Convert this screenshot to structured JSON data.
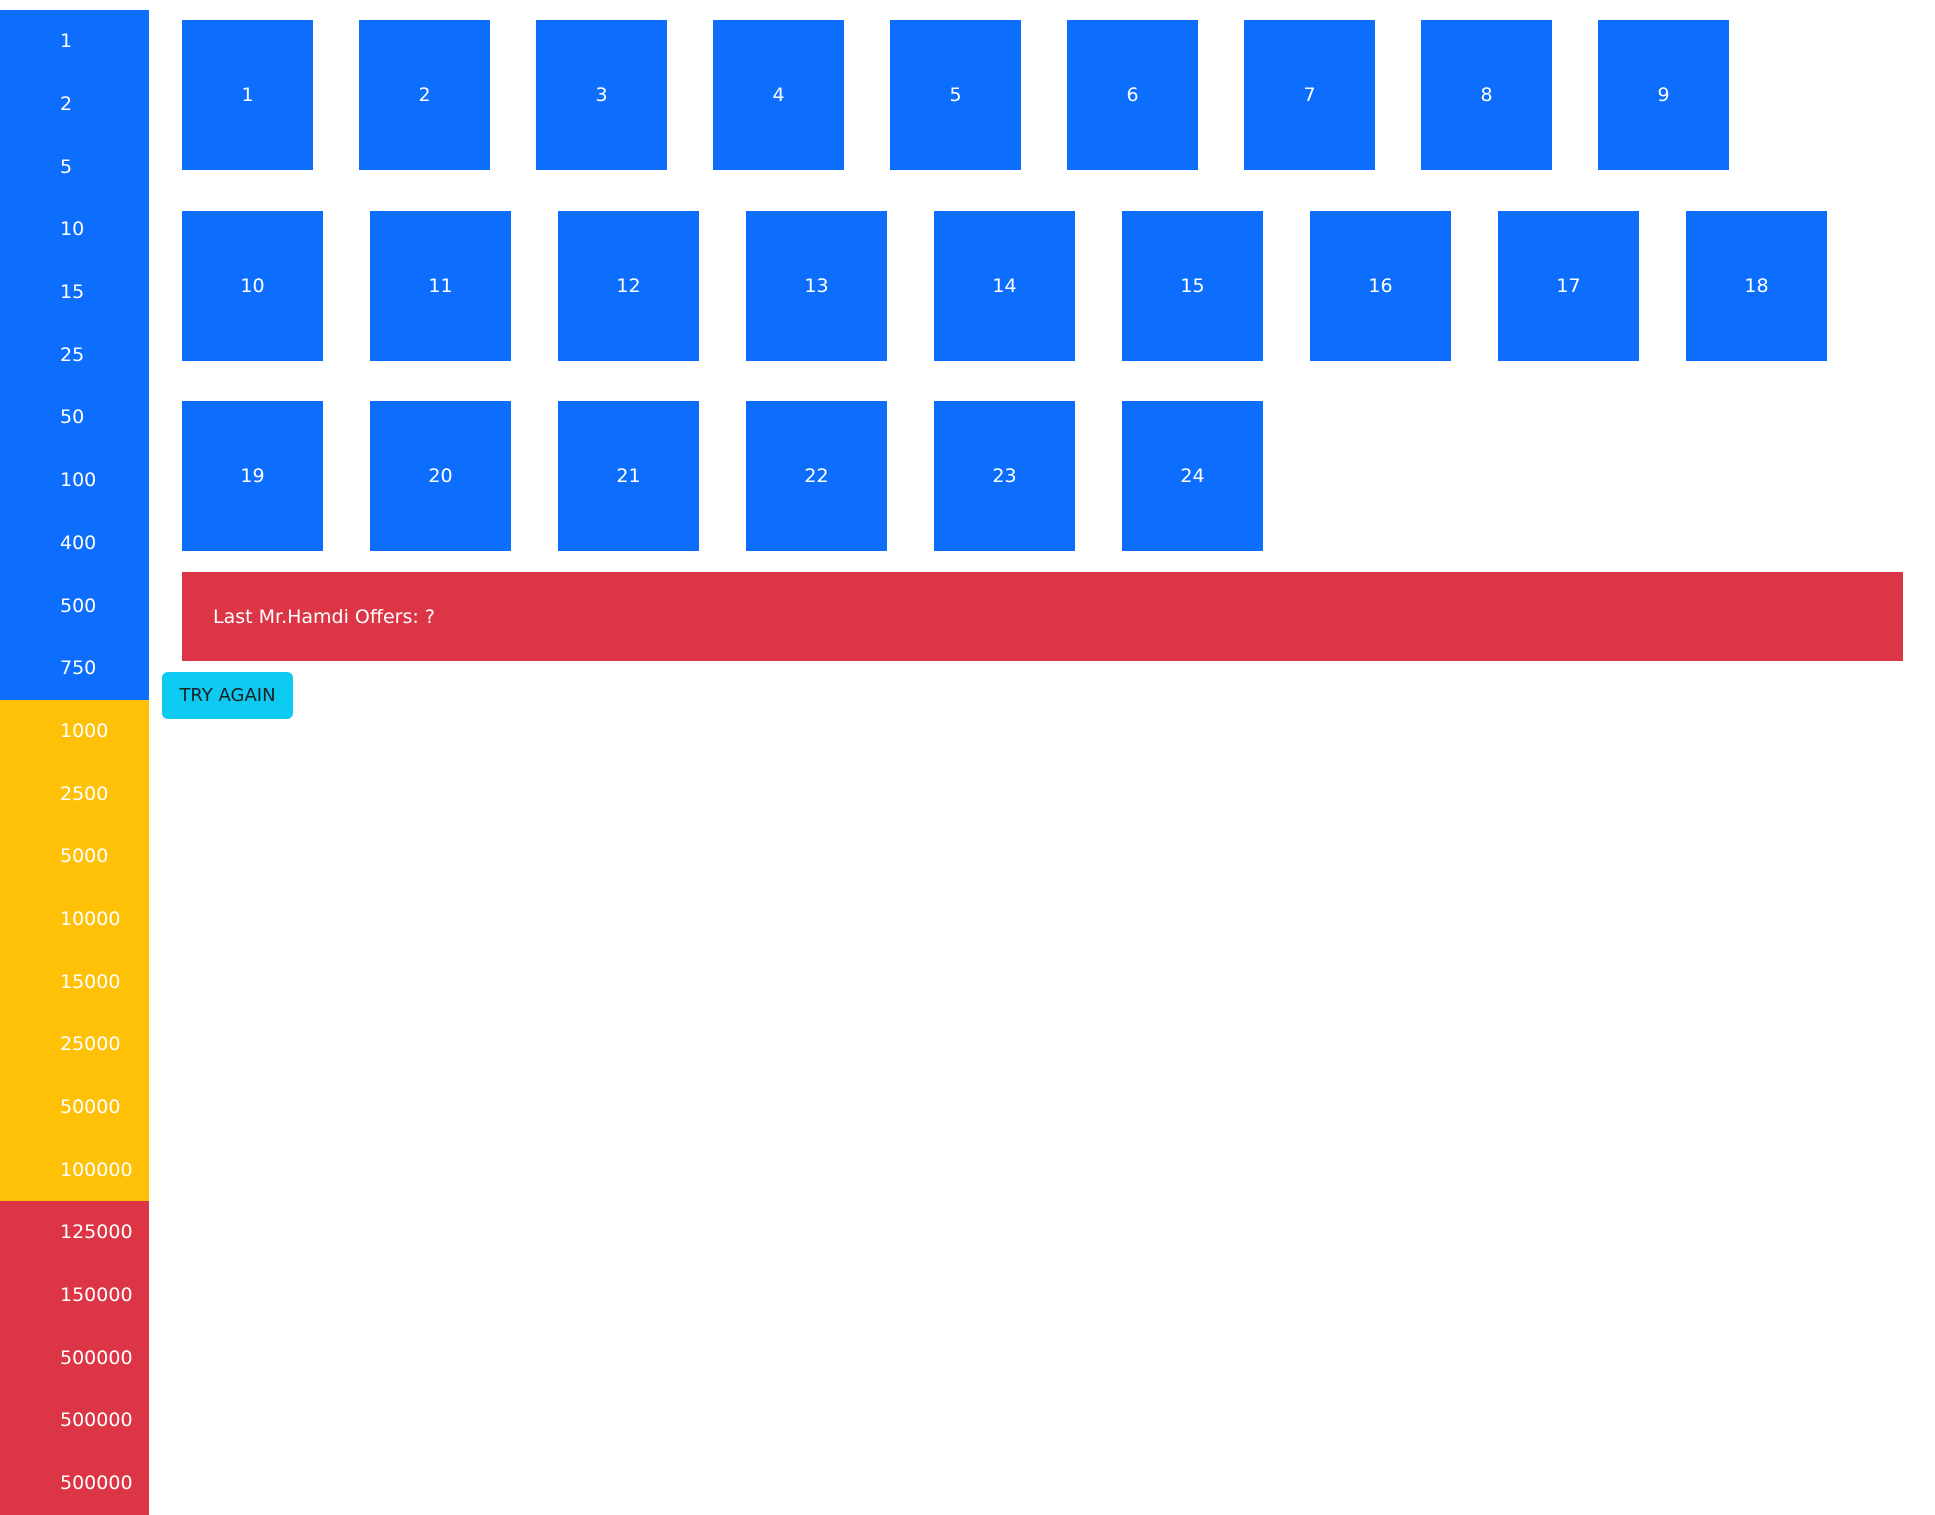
{
  "prize_board": {
    "colors": {
      "low": "#0d6efd",
      "mid": "#ffc107",
      "high": "#dc3545"
    },
    "items": [
      {
        "label": "1",
        "tier": "low"
      },
      {
        "label": "2",
        "tier": "low"
      },
      {
        "label": "5",
        "tier": "low"
      },
      {
        "label": "10",
        "tier": "low"
      },
      {
        "label": "15",
        "tier": "low"
      },
      {
        "label": "25",
        "tier": "low"
      },
      {
        "label": "50",
        "tier": "low"
      },
      {
        "label": "100",
        "tier": "low"
      },
      {
        "label": "400",
        "tier": "low"
      },
      {
        "label": "500",
        "tier": "low"
      },
      {
        "label": "750",
        "tier": "low"
      },
      {
        "label": "1000",
        "tier": "mid"
      },
      {
        "label": "2500",
        "tier": "mid"
      },
      {
        "label": "5000",
        "tier": "mid"
      },
      {
        "label": "10000",
        "tier": "mid"
      },
      {
        "label": "15000",
        "tier": "mid"
      },
      {
        "label": "25000",
        "tier": "mid"
      },
      {
        "label": "50000",
        "tier": "mid"
      },
      {
        "label": "100000",
        "tier": "mid"
      },
      {
        "label": "125000",
        "tier": "high"
      },
      {
        "label": "150000",
        "tier": "high"
      },
      {
        "label": "500000",
        "tier": "high"
      },
      {
        "label": "500000",
        "tier": "high"
      },
      {
        "label": "500000",
        "tier": "high"
      }
    ]
  },
  "boxes": {
    "color": "#0d6efd",
    "labels": [
      "1",
      "2",
      "3",
      "4",
      "5",
      "6",
      "7",
      "8",
      "9",
      "10",
      "11",
      "12",
      "13",
      "14",
      "15",
      "16",
      "17",
      "18",
      "19",
      "20",
      "21",
      "22",
      "23",
      "24"
    ]
  },
  "offer": {
    "text": "Last Mr.Hamdi Offers: ?",
    "color": "#dc3545"
  },
  "actions": {
    "try_again_label": "TRY AGAIN",
    "try_again_color": "#0dcaf0"
  }
}
